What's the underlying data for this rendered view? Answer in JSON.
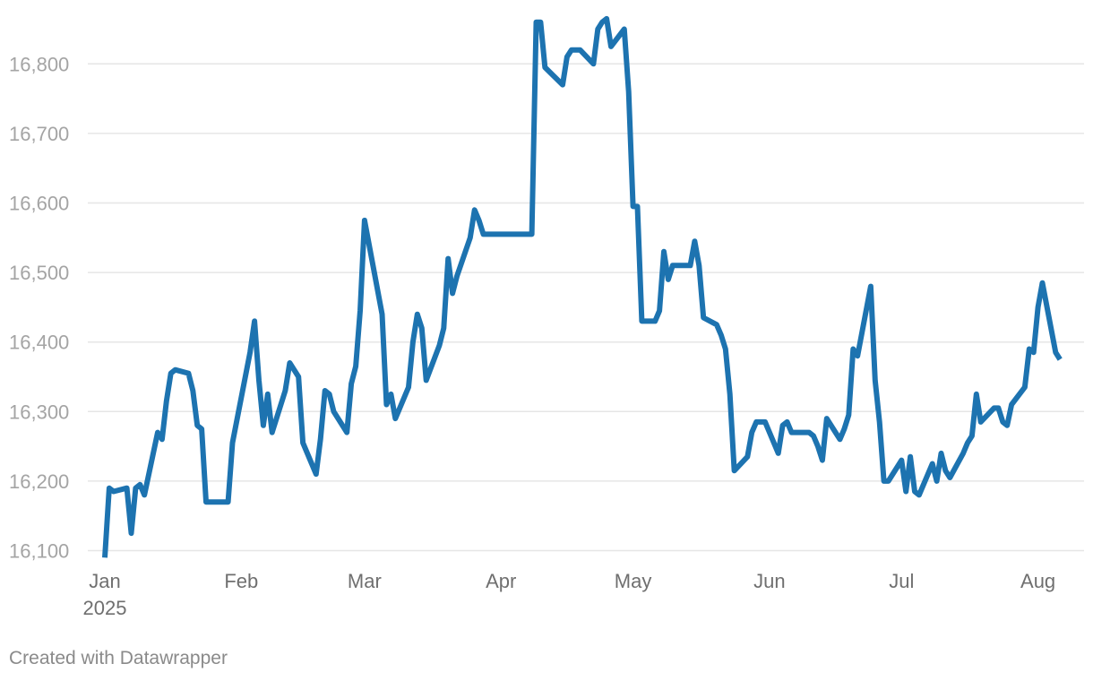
{
  "chart_data": {
    "type": "line",
    "title": "",
    "xlabel": "",
    "ylabel": "",
    "x_range": [
      "2025-01-01",
      "2025-08-08"
    ],
    "ylim": [
      16080,
      16880
    ],
    "yticks": [
      16100,
      16200,
      16300,
      16400,
      16500,
      16600,
      16700,
      16800
    ],
    "ytick_labels": [
      "16,100",
      "16,200",
      "16,300",
      "16,400",
      "16,500",
      "16,600",
      "16,700",
      "16,800"
    ],
    "xticks": [
      {
        "date": "2025-01-01",
        "label": "Jan",
        "sublabel": "2025"
      },
      {
        "date": "2025-02-01",
        "label": "Feb"
      },
      {
        "date": "2025-03-01",
        "label": "Mar"
      },
      {
        "date": "2025-04-01",
        "label": "Apr"
      },
      {
        "date": "2025-05-01",
        "label": "May"
      },
      {
        "date": "2025-06-01",
        "label": "Jun"
      },
      {
        "date": "2025-07-01",
        "label": "Jul"
      },
      {
        "date": "2025-08-01",
        "label": "Aug"
      }
    ],
    "grid": true,
    "legend": "none",
    "series": [
      {
        "color": "#1d73b0",
        "points": [
          [
            "2025-01-01",
            16090
          ],
          [
            "2025-01-02",
            16190
          ],
          [
            "2025-01-03",
            16185
          ],
          [
            "2025-01-06",
            16190
          ],
          [
            "2025-01-07",
            16125
          ],
          [
            "2025-01-08",
            16190
          ],
          [
            "2025-01-09",
            16195
          ],
          [
            "2025-01-10",
            16180
          ],
          [
            "2025-01-13",
            16270
          ],
          [
            "2025-01-14",
            16260
          ],
          [
            "2025-01-15",
            16315
          ],
          [
            "2025-01-16",
            16355
          ],
          [
            "2025-01-17",
            16360
          ],
          [
            "2025-01-20",
            16355
          ],
          [
            "2025-01-21",
            16330
          ],
          [
            "2025-01-22",
            16280
          ],
          [
            "2025-01-23",
            16275
          ],
          [
            "2025-01-24",
            16170
          ],
          [
            "2025-01-29",
            16170
          ],
          [
            "2025-01-30",
            16255
          ],
          [
            "2025-02-03",
            16385
          ],
          [
            "2025-02-04",
            16430
          ],
          [
            "2025-02-05",
            16345
          ],
          [
            "2025-02-06",
            16280
          ],
          [
            "2025-02-07",
            16325
          ],
          [
            "2025-02-08",
            16270
          ],
          [
            "2025-02-11",
            16330
          ],
          [
            "2025-02-12",
            16370
          ],
          [
            "2025-02-14",
            16350
          ],
          [
            "2025-02-15",
            16255
          ],
          [
            "2025-02-18",
            16210
          ],
          [
            "2025-02-19",
            16260
          ],
          [
            "2025-02-20",
            16330
          ],
          [
            "2025-02-21",
            16325
          ],
          [
            "2025-02-22",
            16300
          ],
          [
            "2025-02-25",
            16270
          ],
          [
            "2025-02-26",
            16340
          ],
          [
            "2025-02-27",
            16365
          ],
          [
            "2025-02-28",
            16445
          ],
          [
            "2025-03-01",
            16575
          ],
          [
            "2025-03-05",
            16440
          ],
          [
            "2025-03-06",
            16310
          ],
          [
            "2025-03-07",
            16325
          ],
          [
            "2025-03-08",
            16290
          ],
          [
            "2025-03-11",
            16335
          ],
          [
            "2025-03-12",
            16400
          ],
          [
            "2025-03-13",
            16440
          ],
          [
            "2025-03-14",
            16420
          ],
          [
            "2025-03-15",
            16345
          ],
          [
            "2025-03-18",
            16395
          ],
          [
            "2025-03-19",
            16420
          ],
          [
            "2025-03-20",
            16520
          ],
          [
            "2025-03-21",
            16470
          ],
          [
            "2025-03-22",
            16495
          ],
          [
            "2025-03-25",
            16550
          ],
          [
            "2025-03-26",
            16590
          ],
          [
            "2025-03-27",
            16575
          ],
          [
            "2025-03-28",
            16555
          ],
          [
            "2025-04-08",
            16555
          ],
          [
            "2025-04-09",
            16860
          ],
          [
            "2025-04-10",
            16860
          ],
          [
            "2025-04-11",
            16795
          ],
          [
            "2025-04-15",
            16770
          ],
          [
            "2025-04-16",
            16810
          ],
          [
            "2025-04-17",
            16820
          ],
          [
            "2025-04-19",
            16820
          ],
          [
            "2025-04-22",
            16800
          ],
          [
            "2025-04-23",
            16850
          ],
          [
            "2025-04-24",
            16860
          ],
          [
            "2025-04-25",
            16865
          ],
          [
            "2025-04-26",
            16825
          ],
          [
            "2025-04-29",
            16850
          ],
          [
            "2025-04-30",
            16760
          ],
          [
            "2025-05-01",
            16595
          ],
          [
            "2025-05-02",
            16595
          ],
          [
            "2025-05-03",
            16430
          ],
          [
            "2025-05-06",
            16430
          ],
          [
            "2025-05-07",
            16445
          ],
          [
            "2025-05-08",
            16530
          ],
          [
            "2025-05-09",
            16490
          ],
          [
            "2025-05-10",
            16510
          ],
          [
            "2025-05-14",
            16510
          ],
          [
            "2025-05-15",
            16545
          ],
          [
            "2025-05-16",
            16510
          ],
          [
            "2025-05-17",
            16435
          ],
          [
            "2025-05-20",
            16425
          ],
          [
            "2025-05-21",
            16410
          ],
          [
            "2025-05-22",
            16390
          ],
          [
            "2025-05-23",
            16325
          ],
          [
            "2025-05-24",
            16215
          ],
          [
            "2025-05-27",
            16235
          ],
          [
            "2025-05-28",
            16270
          ],
          [
            "2025-05-29",
            16285
          ],
          [
            "2025-05-31",
            16285
          ],
          [
            "2025-06-03",
            16240
          ],
          [
            "2025-06-04",
            16280
          ],
          [
            "2025-06-05",
            16285
          ],
          [
            "2025-06-06",
            16270
          ],
          [
            "2025-06-10",
            16270
          ],
          [
            "2025-06-11",
            16265
          ],
          [
            "2025-06-12",
            16250
          ],
          [
            "2025-06-13",
            16230
          ],
          [
            "2025-06-14",
            16290
          ],
          [
            "2025-06-17",
            16260
          ],
          [
            "2025-06-18",
            16275
          ],
          [
            "2025-06-19",
            16295
          ],
          [
            "2025-06-20",
            16390
          ],
          [
            "2025-06-21",
            16380
          ],
          [
            "2025-06-24",
            16480
          ],
          [
            "2025-06-25",
            16345
          ],
          [
            "2025-06-26",
            16285
          ],
          [
            "2025-06-27",
            16200
          ],
          [
            "2025-06-28",
            16200
          ],
          [
            "2025-07-01",
            16230
          ],
          [
            "2025-07-02",
            16185
          ],
          [
            "2025-07-03",
            16235
          ],
          [
            "2025-07-04",
            16185
          ],
          [
            "2025-07-05",
            16180
          ],
          [
            "2025-07-08",
            16225
          ],
          [
            "2025-07-09",
            16200
          ],
          [
            "2025-07-10",
            16240
          ],
          [
            "2025-07-11",
            16215
          ],
          [
            "2025-07-12",
            16205
          ],
          [
            "2025-07-15",
            16240
          ],
          [
            "2025-07-16",
            16255
          ],
          [
            "2025-07-17",
            16265
          ],
          [
            "2025-07-18",
            16325
          ],
          [
            "2025-07-19",
            16285
          ],
          [
            "2025-07-22",
            16305
          ],
          [
            "2025-07-23",
            16305
          ],
          [
            "2025-07-24",
            16285
          ],
          [
            "2025-07-25",
            16280
          ],
          [
            "2025-07-26",
            16310
          ],
          [
            "2025-07-29",
            16335
          ],
          [
            "2025-07-30",
            16390
          ],
          [
            "2025-07-31",
            16385
          ],
          [
            "2025-08-01",
            16450
          ],
          [
            "2025-08-02",
            16485
          ],
          [
            "2025-08-05",
            16385
          ],
          [
            "2025-08-06",
            16375
          ]
        ]
      }
    ]
  },
  "footer": {
    "credit": "Created with Datawrapper"
  }
}
